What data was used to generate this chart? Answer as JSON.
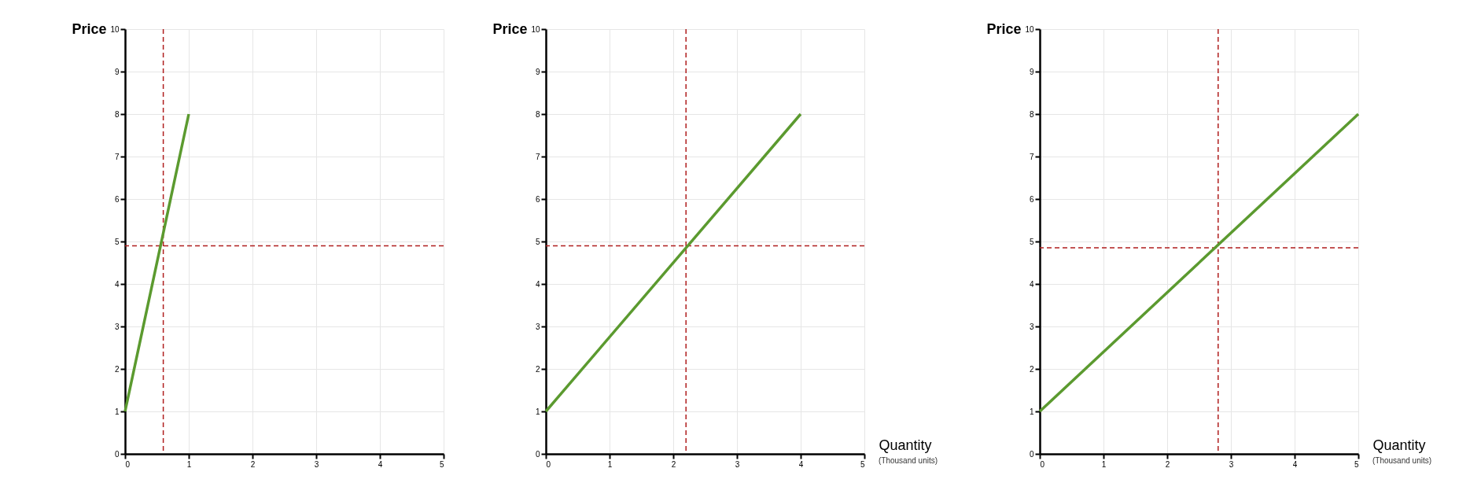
{
  "chart_data": [
    {
      "type": "line",
      "ylabel": "Price",
      "xlim": [
        0,
        5
      ],
      "xticks": [
        0,
        1,
        2,
        3,
        4,
        5
      ],
      "ylim": [
        0,
        10
      ],
      "yticks": [
        0,
        1,
        2,
        3,
        4,
        5,
        6,
        7,
        8,
        9,
        10
      ],
      "grid": true,
      "series": [
        {
          "color": "#5b9a2f",
          "x": [
            0,
            1
          ],
          "values": [
            1,
            8
          ]
        }
      ],
      "ref_lines": [
        {
          "axis": "y",
          "value": 4.9,
          "color": "#b01e1e",
          "line_style": "dashed"
        },
        {
          "axis": "x",
          "value": 0.6,
          "color": "#b01e1e",
          "line_style": "dashed"
        }
      ]
    },
    {
      "type": "line",
      "ylabel": "Price",
      "xlabel": "Quantity",
      "annotations": [
        "(Thousand units)"
      ],
      "xlim": [
        0,
        5
      ],
      "xticks": [
        0,
        1,
        2,
        3,
        4,
        5
      ],
      "ylim": [
        0,
        10
      ],
      "yticks": [
        0,
        1,
        2,
        3,
        4,
        5,
        6,
        7,
        8,
        9,
        10
      ],
      "grid": true,
      "series": [
        {
          "color": "#5b9a2f",
          "x": [
            0,
            4
          ],
          "values": [
            1,
            8
          ]
        }
      ],
      "ref_lines": [
        {
          "axis": "y",
          "value": 4.9,
          "color": "#b01e1e",
          "line_style": "dashed"
        },
        {
          "axis": "x",
          "value": 2.2,
          "color": "#b01e1e",
          "line_style": "dashed"
        }
      ]
    },
    {
      "type": "line",
      "ylabel": "Price",
      "xlabel": "Quantity",
      "annotations": [
        "(Thousand units)"
      ],
      "xlim": [
        0,
        5
      ],
      "xticks": [
        0,
        1,
        2,
        3,
        4,
        5
      ],
      "ylim": [
        0,
        10
      ],
      "yticks": [
        0,
        1,
        2,
        3,
        4,
        5,
        6,
        7,
        8,
        9,
        10
      ],
      "grid": true,
      "series": [
        {
          "color": "#5b9a2f",
          "x": [
            0,
            5
          ],
          "values": [
            1,
            8
          ]
        }
      ],
      "ref_lines": [
        {
          "axis": "y",
          "value": 4.85,
          "color": "#b01e1e",
          "line_style": "dashed"
        },
        {
          "axis": "x",
          "value": 2.8,
          "color": "#b01e1e",
          "line_style": "dashed"
        }
      ]
    }
  ]
}
